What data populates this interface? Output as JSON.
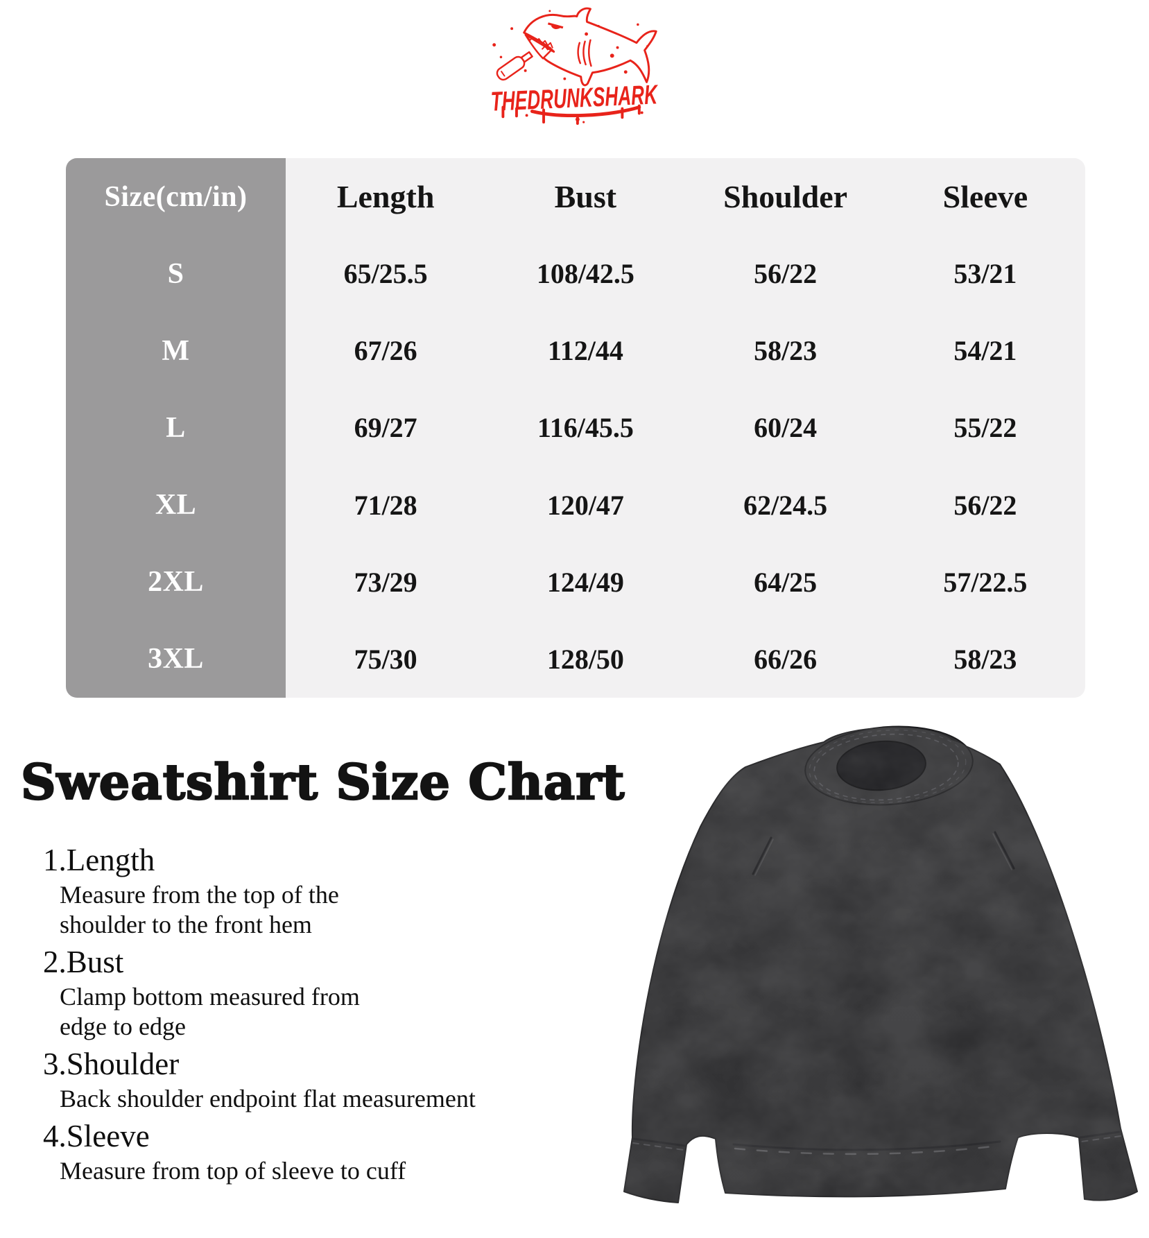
{
  "brand": {
    "name": "THEDRUNKSHARK",
    "logo_color": "#e8231a",
    "logo_icon": "drunk-shark-with-bottle-icon"
  },
  "table": {
    "header": [
      "Size(cm/in)",
      "Length",
      "Bust",
      "Shoulder",
      "Sleeve"
    ],
    "rows": [
      {
        "size": "S",
        "values": [
          "65/25.5",
          "108/42.5",
          "56/22",
          "53/21"
        ]
      },
      {
        "size": "M",
        "values": [
          "67/26",
          "112/44",
          "58/23",
          "54/21"
        ]
      },
      {
        "size": "L",
        "values": [
          "69/27",
          "116/45.5",
          "60/24",
          "55/22"
        ]
      },
      {
        "size": "XL",
        "values": [
          "71/28",
          "120/47",
          "62/24.5",
          "56/22"
        ]
      },
      {
        "size": "2XL",
        "values": [
          "73/29",
          "124/49",
          "64/25",
          "57/22.5"
        ]
      },
      {
        "size": "3XL",
        "values": [
          "75/30",
          "128/50",
          "66/26",
          "58/23"
        ]
      }
    ],
    "colors": {
      "size_column_bg": "#9b9a9b",
      "table_bg": "#f2f1f2",
      "size_text": "#ffffff",
      "value_text": "#151515"
    }
  },
  "heading": "Sweatshirt Size Chart",
  "notes": [
    {
      "term": "1.Length",
      "lines": [
        "Measure from the top of the",
        "shoulder to the front hem"
      ]
    },
    {
      "term": "2.Bust",
      "lines": [
        "Clamp bottom measured from",
        "edge to edge"
      ]
    },
    {
      "term": "3.Shoulder",
      "lines": [
        "Back shoulder endpoint flat measurement"
      ]
    },
    {
      "term": "4.Sleeve",
      "lines": [
        "Measure from top of sleeve to cuff"
      ]
    }
  ],
  "product_image": {
    "description": "black washed crewneck sweatshirt, front view",
    "garment_color": "#2d2d2e"
  }
}
